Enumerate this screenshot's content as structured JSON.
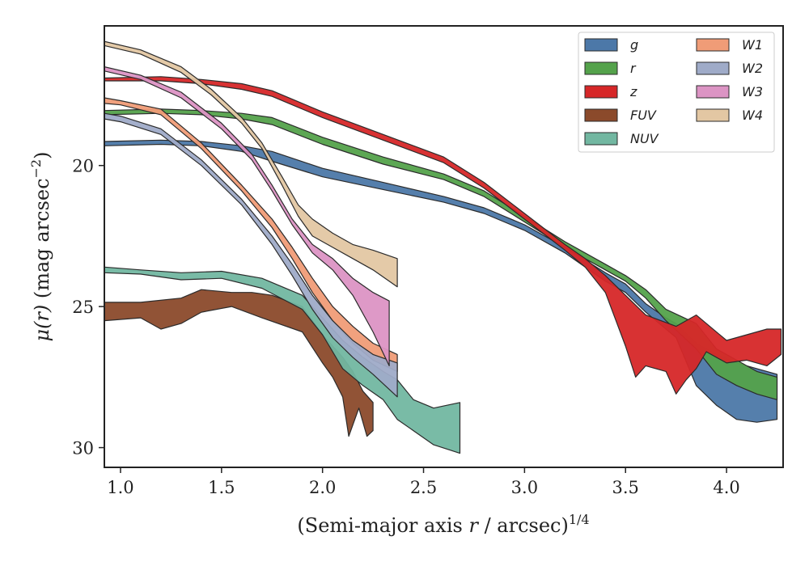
{
  "chart_data": {
    "type": "area",
    "xlabel": "(Semi-major axis r / arcsec)^1/4",
    "xlabel_parts": {
      "pre": "(Semi-major axis ",
      "var": "r",
      "mid": " / arcsec)",
      "sup": "1/4"
    },
    "ylabel": "μ(r) (mag arcsec^-2)",
    "ylabel_parts": {
      "var": "μ(r)",
      "mid": " (mag arcsec",
      "sup": "−2",
      "post": ")"
    },
    "xlim": [
      0.92,
      4.28
    ],
    "ylim": [
      30.7,
      15.05
    ],
    "y_inverted": true,
    "xticks": [
      1.0,
      1.5,
      2.0,
      2.5,
      3.0,
      3.5,
      4.0
    ],
    "xtick_labels": [
      "1.0",
      "1.5",
      "2.0",
      "2.5",
      "3.0",
      "3.5",
      "4.0"
    ],
    "yticks": [
      20,
      25,
      30
    ],
    "ytick_labels": [
      "20",
      "25",
      "30"
    ],
    "grid": false,
    "legend": {
      "placement": "top-right",
      "columns": 2
    },
    "series": [
      {
        "name": "g",
        "color": "#4c78a8",
        "upper": [
          [
            0.92,
            19.15
          ],
          [
            1.2,
            19.1
          ],
          [
            1.4,
            19.15
          ],
          [
            1.6,
            19.3
          ],
          [
            1.75,
            19.5
          ],
          [
            2.0,
            20.1
          ],
          [
            2.3,
            20.6
          ],
          [
            2.6,
            21.1
          ],
          [
            2.8,
            21.5
          ],
          [
            3.0,
            22.1
          ],
          [
            3.2,
            22.9
          ],
          [
            3.4,
            23.8
          ],
          [
            3.5,
            24.2
          ],
          [
            3.6,
            24.9
          ],
          [
            3.7,
            25.4
          ],
          [
            3.75,
            25.6
          ],
          [
            3.85,
            26.3
          ],
          [
            3.95,
            26.7
          ],
          [
            4.05,
            27.0
          ],
          [
            4.15,
            27.2
          ],
          [
            4.25,
            27.4
          ]
        ],
        "lower": [
          [
            0.92,
            19.3
          ],
          [
            1.2,
            19.25
          ],
          [
            1.4,
            19.3
          ],
          [
            1.6,
            19.5
          ],
          [
            1.75,
            19.85
          ],
          [
            2.0,
            20.4
          ],
          [
            2.3,
            20.85
          ],
          [
            2.6,
            21.3
          ],
          [
            2.8,
            21.7
          ],
          [
            3.0,
            22.3
          ],
          [
            3.2,
            23.1
          ],
          [
            3.4,
            24.1
          ],
          [
            3.5,
            24.5
          ],
          [
            3.6,
            25.2
          ],
          [
            3.7,
            25.8
          ],
          [
            3.75,
            26.1
          ],
          [
            3.85,
            27.8
          ],
          [
            3.95,
            28.5
          ],
          [
            4.05,
            29.0
          ],
          [
            4.15,
            29.1
          ],
          [
            4.25,
            29.0
          ]
        ]
      },
      {
        "name": "r",
        "color": "#54a24b",
        "upper": [
          [
            0.92,
            18.05
          ],
          [
            1.2,
            18.0
          ],
          [
            1.4,
            18.05
          ],
          [
            1.6,
            18.15
          ],
          [
            1.75,
            18.3
          ],
          [
            2.0,
            19.0
          ],
          [
            2.3,
            19.7
          ],
          [
            2.6,
            20.3
          ],
          [
            2.8,
            20.9
          ],
          [
            3.0,
            21.8
          ],
          [
            3.2,
            22.7
          ],
          [
            3.4,
            23.5
          ],
          [
            3.5,
            23.9
          ],
          [
            3.6,
            24.4
          ],
          [
            3.7,
            25.1
          ],
          [
            3.85,
            25.6
          ],
          [
            3.95,
            26.5
          ],
          [
            4.05,
            26.9
          ],
          [
            4.15,
            27.3
          ],
          [
            4.25,
            27.5
          ]
        ],
        "lower": [
          [
            0.92,
            18.2
          ],
          [
            1.2,
            18.15
          ],
          [
            1.4,
            18.2
          ],
          [
            1.6,
            18.35
          ],
          [
            1.75,
            18.55
          ],
          [
            2.0,
            19.25
          ],
          [
            2.3,
            19.95
          ],
          [
            2.6,
            20.5
          ],
          [
            2.8,
            21.1
          ],
          [
            3.0,
            22.0
          ],
          [
            3.2,
            22.9
          ],
          [
            3.4,
            23.7
          ],
          [
            3.5,
            24.1
          ],
          [
            3.6,
            24.7
          ],
          [
            3.7,
            25.5
          ],
          [
            3.85,
            26.5
          ],
          [
            3.95,
            27.4
          ],
          [
            4.05,
            27.8
          ],
          [
            4.15,
            28.1
          ],
          [
            4.25,
            28.3
          ]
        ]
      },
      {
        "name": "z",
        "color": "#d62728",
        "upper": [
          [
            0.92,
            16.9
          ],
          [
            1.2,
            16.85
          ],
          [
            1.4,
            16.95
          ],
          [
            1.6,
            17.1
          ],
          [
            1.75,
            17.35
          ],
          [
            2.0,
            18.1
          ],
          [
            2.3,
            18.9
          ],
          [
            2.6,
            19.7
          ],
          [
            2.8,
            20.6
          ],
          [
            3.0,
            21.7
          ],
          [
            3.2,
            22.8
          ],
          [
            3.3,
            23.3
          ],
          [
            3.4,
            23.9
          ],
          [
            3.5,
            24.6
          ],
          [
            3.6,
            25.3
          ],
          [
            3.75,
            25.7
          ],
          [
            3.85,
            25.3
          ],
          [
            3.9,
            25.6
          ],
          [
            4.0,
            26.2
          ],
          [
            4.1,
            26.0
          ],
          [
            4.2,
            25.8
          ],
          [
            4.27,
            25.8
          ]
        ],
        "lower": [
          [
            0.92,
            17.0
          ],
          [
            1.2,
            17.0
          ],
          [
            1.4,
            17.1
          ],
          [
            1.6,
            17.3
          ],
          [
            1.75,
            17.55
          ],
          [
            2.0,
            18.3
          ],
          [
            2.3,
            19.1
          ],
          [
            2.6,
            19.9
          ],
          [
            2.8,
            20.8
          ],
          [
            3.0,
            21.9
          ],
          [
            3.2,
            23.0
          ],
          [
            3.3,
            23.6
          ],
          [
            3.4,
            24.5
          ],
          [
            3.5,
            26.4
          ],
          [
            3.55,
            27.5
          ],
          [
            3.6,
            27.1
          ],
          [
            3.7,
            27.3
          ],
          [
            3.75,
            28.1
          ],
          [
            3.8,
            27.6
          ],
          [
            3.85,
            27.2
          ],
          [
            3.9,
            26.6
          ],
          [
            4.0,
            27.0
          ],
          [
            4.1,
            26.9
          ],
          [
            4.2,
            27.1
          ],
          [
            4.27,
            26.7
          ]
        ]
      },
      {
        "name": "FUV",
        "color": "#8b4a2b",
        "upper": [
          [
            0.92,
            24.85
          ],
          [
            1.1,
            24.85
          ],
          [
            1.3,
            24.7
          ],
          [
            1.4,
            24.4
          ],
          [
            1.55,
            24.5
          ],
          [
            1.65,
            24.5
          ],
          [
            1.75,
            24.6
          ],
          [
            1.9,
            25.0
          ],
          [
            2.0,
            26.0
          ],
          [
            2.1,
            26.8
          ],
          [
            2.15,
            27.3
          ],
          [
            2.2,
            28.0
          ],
          [
            2.25,
            28.4
          ]
        ],
        "lower": [
          [
            0.92,
            25.5
          ],
          [
            1.1,
            25.4
          ],
          [
            1.2,
            25.8
          ],
          [
            1.3,
            25.6
          ],
          [
            1.4,
            25.2
          ],
          [
            1.55,
            25.0
          ],
          [
            1.7,
            25.4
          ],
          [
            1.9,
            25.9
          ],
          [
            2.0,
            27.0
          ],
          [
            2.05,
            27.5
          ],
          [
            2.1,
            28.2
          ],
          [
            2.13,
            29.6
          ],
          [
            2.18,
            28.6
          ],
          [
            2.22,
            29.6
          ],
          [
            2.25,
            29.4
          ]
        ]
      },
      {
        "name": "NUV",
        "color": "#72b7a1",
        "upper": [
          [
            0.92,
            23.6
          ],
          [
            1.1,
            23.7
          ],
          [
            1.3,
            23.8
          ],
          [
            1.5,
            23.75
          ],
          [
            1.7,
            24.0
          ],
          [
            1.9,
            24.6
          ],
          [
            2.0,
            25.4
          ],
          [
            2.1,
            26.2
          ],
          [
            2.2,
            26.8
          ],
          [
            2.3,
            27.3
          ],
          [
            2.37,
            27.6
          ],
          [
            2.45,
            28.3
          ],
          [
            2.55,
            28.6
          ],
          [
            2.68,
            28.4
          ]
        ],
        "lower": [
          [
            0.92,
            23.8
          ],
          [
            1.1,
            23.85
          ],
          [
            1.3,
            24.05
          ],
          [
            1.5,
            24.0
          ],
          [
            1.7,
            24.35
          ],
          [
            1.9,
            25.1
          ],
          [
            2.0,
            26.0
          ],
          [
            2.1,
            27.2
          ],
          [
            2.2,
            27.8
          ],
          [
            2.3,
            28.3
          ],
          [
            2.37,
            29.0
          ],
          [
            2.45,
            29.4
          ],
          [
            2.55,
            29.9
          ],
          [
            2.68,
            30.2
          ]
        ]
      },
      {
        "name": "W1",
        "color": "#f09c77",
        "upper": [
          [
            0.92,
            17.6
          ],
          [
            1.0,
            17.7
          ],
          [
            1.2,
            18.0
          ],
          [
            1.4,
            19.2
          ],
          [
            1.6,
            20.7
          ],
          [
            1.75,
            21.9
          ],
          [
            1.85,
            22.9
          ],
          [
            1.95,
            24.0
          ],
          [
            2.05,
            25.0
          ],
          [
            2.15,
            25.7
          ],
          [
            2.25,
            26.3
          ],
          [
            2.37,
            26.7
          ]
        ],
        "lower": [
          [
            0.92,
            17.8
          ],
          [
            1.0,
            17.85
          ],
          [
            1.2,
            18.2
          ],
          [
            1.4,
            19.4
          ],
          [
            1.6,
            20.9
          ],
          [
            1.75,
            22.2
          ],
          [
            1.85,
            23.3
          ],
          [
            1.95,
            24.5
          ],
          [
            2.05,
            25.5
          ],
          [
            2.15,
            26.3
          ],
          [
            2.25,
            26.9
          ],
          [
            2.37,
            27.3
          ]
        ]
      },
      {
        "name": "W2",
        "color": "#9fabc8",
        "upper": [
          [
            0.92,
            18.15
          ],
          [
            1.0,
            18.25
          ],
          [
            1.2,
            18.7
          ],
          [
            1.4,
            19.8
          ],
          [
            1.6,
            21.2
          ],
          [
            1.75,
            22.5
          ],
          [
            1.85,
            23.5
          ],
          [
            1.95,
            24.6
          ],
          [
            2.05,
            25.5
          ],
          [
            2.15,
            26.2
          ],
          [
            2.25,
            26.7
          ],
          [
            2.37,
            27.0
          ]
        ],
        "lower": [
          [
            0.92,
            18.35
          ],
          [
            1.0,
            18.45
          ],
          [
            1.2,
            18.9
          ],
          [
            1.4,
            20.0
          ],
          [
            1.6,
            21.4
          ],
          [
            1.75,
            22.8
          ],
          [
            1.85,
            23.9
          ],
          [
            1.95,
            25.1
          ],
          [
            2.05,
            26.1
          ],
          [
            2.15,
            26.8
          ],
          [
            2.25,
            27.4
          ],
          [
            2.37,
            28.2
          ]
        ]
      },
      {
        "name": "W3",
        "color": "#dc94c4",
        "upper": [
          [
            0.92,
            16.5
          ],
          [
            1.1,
            16.8
          ],
          [
            1.3,
            17.4
          ],
          [
            1.5,
            18.5
          ],
          [
            1.65,
            19.6
          ],
          [
            1.75,
            20.7
          ],
          [
            1.85,
            21.9
          ],
          [
            1.95,
            22.8
          ],
          [
            2.05,
            23.3
          ],
          [
            2.15,
            24.0
          ],
          [
            2.25,
            24.5
          ],
          [
            2.33,
            24.8
          ]
        ],
        "lower": [
          [
            0.92,
            16.65
          ],
          [
            1.1,
            16.95
          ],
          [
            1.3,
            17.6
          ],
          [
            1.5,
            18.7
          ],
          [
            1.65,
            19.8
          ],
          [
            1.75,
            20.9
          ],
          [
            1.85,
            22.1
          ],
          [
            1.95,
            23.1
          ],
          [
            2.05,
            23.7
          ],
          [
            2.15,
            24.6
          ],
          [
            2.25,
            25.9
          ],
          [
            2.33,
            27.1
          ]
        ]
      },
      {
        "name": "W4",
        "color": "#e3c7a3",
        "upper": [
          [
            0.92,
            15.6
          ],
          [
            1.1,
            15.9
          ],
          [
            1.3,
            16.5
          ],
          [
            1.45,
            17.3
          ],
          [
            1.6,
            18.3
          ],
          [
            1.7,
            19.2
          ],
          [
            1.8,
            20.4
          ],
          [
            1.88,
            21.4
          ],
          [
            1.95,
            21.9
          ],
          [
            2.05,
            22.4
          ],
          [
            2.15,
            22.8
          ],
          [
            2.25,
            23.0
          ],
          [
            2.37,
            23.3
          ]
        ],
        "lower": [
          [
            0.92,
            15.75
          ],
          [
            1.1,
            16.05
          ],
          [
            1.3,
            16.7
          ],
          [
            1.45,
            17.5
          ],
          [
            1.6,
            18.5
          ],
          [
            1.7,
            19.4
          ],
          [
            1.8,
            20.7
          ],
          [
            1.88,
            21.8
          ],
          [
            1.95,
            22.5
          ],
          [
            2.05,
            22.9
          ],
          [
            2.15,
            23.3
          ],
          [
            2.25,
            23.7
          ],
          [
            2.37,
            24.3
          ]
        ]
      }
    ]
  }
}
